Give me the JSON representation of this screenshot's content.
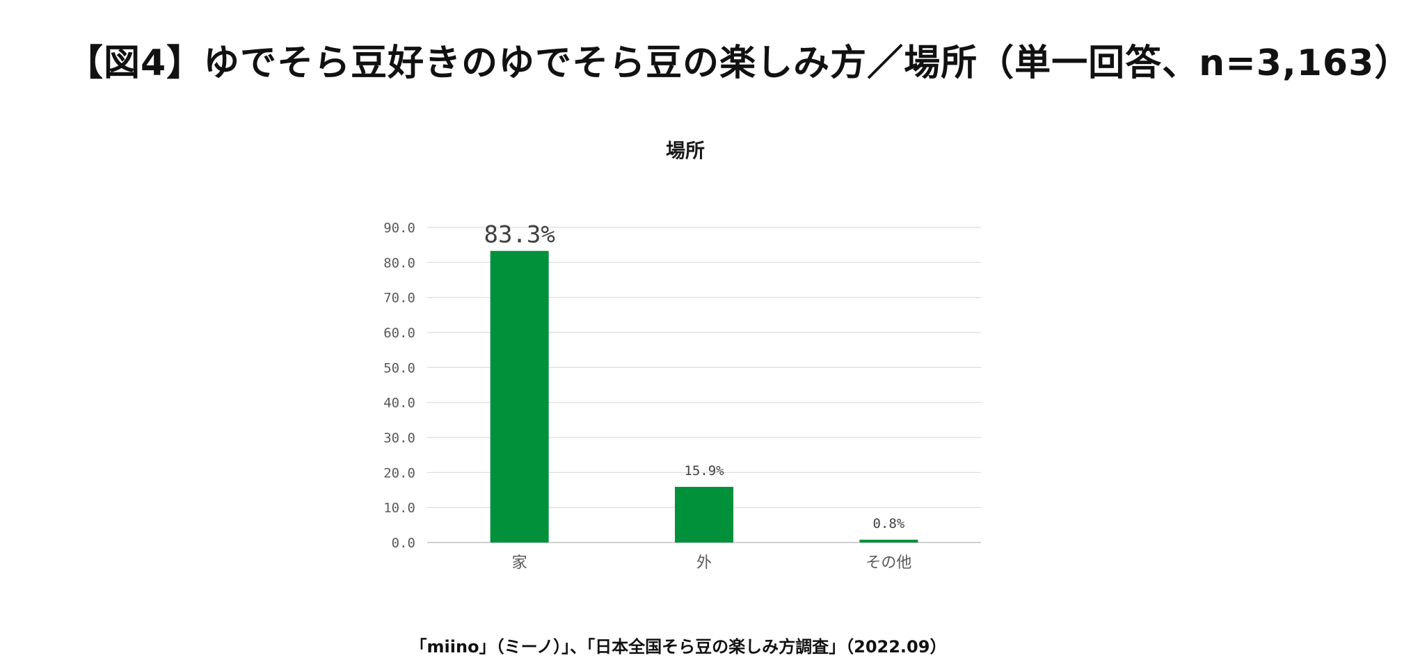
{
  "header": {
    "title": "【図4】ゆでそら豆好きのゆでそら豆の楽しみ方／場所（単一回答、n=3,163）"
  },
  "footer": {
    "source": "「miino」（ミーノ）」、「日本全国そら豆の楽しみ方調査」（2022.09）"
  },
  "colors": {
    "bar": "#00913a",
    "grid": "#d9d9d9",
    "axis_text": "#595959",
    "label_text": "#404040"
  },
  "chart_data": {
    "type": "bar",
    "title": "場所",
    "categories": [
      "家",
      "外",
      "その他"
    ],
    "values": [
      83.3,
      15.9,
      0.8
    ],
    "data_labels": [
      "83.3%",
      "15.9%",
      "0.8%"
    ],
    "y_ticks": [
      "0.0",
      "10.0",
      "20.0",
      "30.0",
      "40.0",
      "50.0",
      "60.0",
      "70.0",
      "80.0",
      "90.0"
    ],
    "ylim": [
      0,
      90
    ],
    "xlabel": "",
    "ylabel": "",
    "grid": true,
    "legend": "none"
  }
}
